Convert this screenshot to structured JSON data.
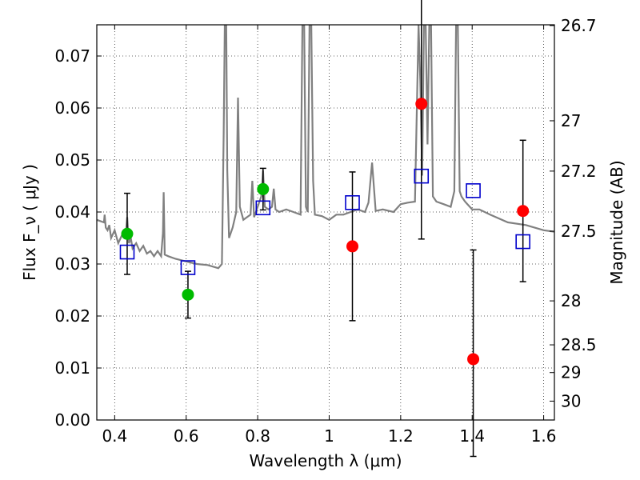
{
  "chart_data": {
    "type": "scatter",
    "title": "",
    "xlabel": "Wavelength  λ (μm)",
    "ylabel": "Flux  F_ν  ( μJy )",
    "y2label": "Magnitude (AB)",
    "xlim": [
      0.35,
      1.63
    ],
    "ylim": [
      0.0,
      0.076
    ],
    "grid": true,
    "x_ticks": [
      0.4,
      0.6,
      0.8,
      1.0,
      1.2,
      1.4,
      1.6
    ],
    "x_tick_labels": [
      "0.4",
      "0.6",
      "0.8",
      "1",
      "1.2",
      "1.4",
      "1.6"
    ],
    "y_ticks": [
      0.0,
      0.01,
      0.02,
      0.03,
      0.04,
      0.05,
      0.06,
      0.07
    ],
    "y_tick_labels": [
      "0.00",
      "0.01",
      "0.02",
      "0.03",
      "0.04",
      "0.05",
      "0.06",
      "0.07"
    ],
    "y2_ticks": [
      26.7,
      27,
      27.2,
      27.5,
      28,
      28.5,
      29,
      30
    ],
    "y2_tick_labels": [
      "26.7",
      "27",
      "27.2",
      "27.5",
      "28",
      "28.5",
      "29",
      "30"
    ],
    "series": [
      {
        "name": "model spectrum",
        "kind": "line",
        "color": "#808080",
        "x": [
          0.35,
          0.37,
          0.372,
          0.375,
          0.38,
          0.385,
          0.39,
          0.4,
          0.41,
          0.42,
          0.43,
          0.435,
          0.44,
          0.445,
          0.45,
          0.46,
          0.47,
          0.48,
          0.49,
          0.5,
          0.51,
          0.52,
          0.53,
          0.535,
          0.537,
          0.54,
          0.55,
          0.57,
          0.6,
          0.63,
          0.66,
          0.69,
          0.7,
          0.705,
          0.708,
          0.712,
          0.715,
          0.72,
          0.73,
          0.74,
          0.745,
          0.75,
          0.76,
          0.77,
          0.78,
          0.785,
          0.79,
          0.8,
          0.81,
          0.815,
          0.82,
          0.83,
          0.84,
          0.845,
          0.85,
          0.86,
          0.88,
          0.9,
          0.92,
          0.925,
          0.93,
          0.935,
          0.94,
          0.945,
          0.95,
          0.955,
          0.96,
          0.98,
          1.0,
          1.02,
          1.04,
          1.06,
          1.08,
          1.1,
          1.11,
          1.12,
          1.13,
          1.15,
          1.18,
          1.2,
          1.22,
          1.24,
          1.25,
          1.255,
          1.26,
          1.265,
          1.27,
          1.275,
          1.28,
          1.285,
          1.29,
          1.3,
          1.32,
          1.34,
          1.35,
          1.355,
          1.36,
          1.365,
          1.37,
          1.38,
          1.4,
          1.42,
          1.45,
          1.5,
          1.55,
          1.6,
          1.63
        ],
        "values": [
          0.0385,
          0.038,
          0.0395,
          0.037,
          0.0365,
          0.0375,
          0.035,
          0.0365,
          0.034,
          0.0355,
          0.035,
          0.039,
          0.034,
          0.035,
          0.033,
          0.034,
          0.0325,
          0.0335,
          0.032,
          0.0325,
          0.0315,
          0.0325,
          0.0315,
          0.036,
          0.0438,
          0.0318,
          0.0315,
          0.031,
          0.0305,
          0.03,
          0.0298,
          0.0292,
          0.03,
          0.055,
          0.076,
          0.076,
          0.048,
          0.035,
          0.037,
          0.04,
          0.062,
          0.041,
          0.0385,
          0.039,
          0.0395,
          0.046,
          0.039,
          0.041,
          0.043,
          0.048,
          0.041,
          0.0405,
          0.041,
          0.0445,
          0.0405,
          0.04,
          0.0405,
          0.04,
          0.0395,
          0.076,
          0.076,
          0.041,
          0.04,
          0.076,
          0.076,
          0.046,
          0.0395,
          0.0392,
          0.0385,
          0.0395,
          0.0395,
          0.04,
          0.0405,
          0.04,
          0.0418,
          0.0495,
          0.0402,
          0.0405,
          0.04,
          0.0415,
          0.0418,
          0.042,
          0.076,
          0.065,
          0.047,
          0.076,
          0.076,
          0.053,
          0.076,
          0.076,
          0.043,
          0.042,
          0.0415,
          0.041,
          0.044,
          0.076,
          0.076,
          0.044,
          0.043,
          0.042,
          0.0405,
          0.0405,
          0.0395,
          0.038,
          0.0375,
          0.0365,
          0.0362
        ]
      },
      {
        "name": "observed (green)",
        "kind": "points",
        "color": "#00bb00",
        "x": [
          0.435,
          0.605,
          0.815
        ],
        "values": [
          0.0358,
          0.0241,
          0.0444
        ],
        "err_lo": [
          0.0078,
          0.0045,
          0.004
        ],
        "err_hi": [
          0.0078,
          0.0045,
          0.004
        ]
      },
      {
        "name": "observed (red)",
        "kind": "points",
        "color": "#ff0000",
        "x": [
          1.065,
          1.258,
          1.403,
          1.542
        ],
        "values": [
          0.0334,
          0.0608,
          0.0117,
          0.0402
        ],
        "err_lo": [
          0.0143,
          0.026,
          0.0187,
          0.0136
        ],
        "err_hi": [
          0.0143,
          0.026,
          0.021,
          0.0136
        ]
      },
      {
        "name": "model photometry",
        "kind": "open-squares",
        "color": "#0000cc",
        "x": [
          0.435,
          0.605,
          0.815,
          1.065,
          1.258,
          1.403,
          1.542
        ],
        "values": [
          0.0323,
          0.0293,
          0.0408,
          0.0418,
          0.0469,
          0.0441,
          0.0343
        ]
      }
    ]
  }
}
